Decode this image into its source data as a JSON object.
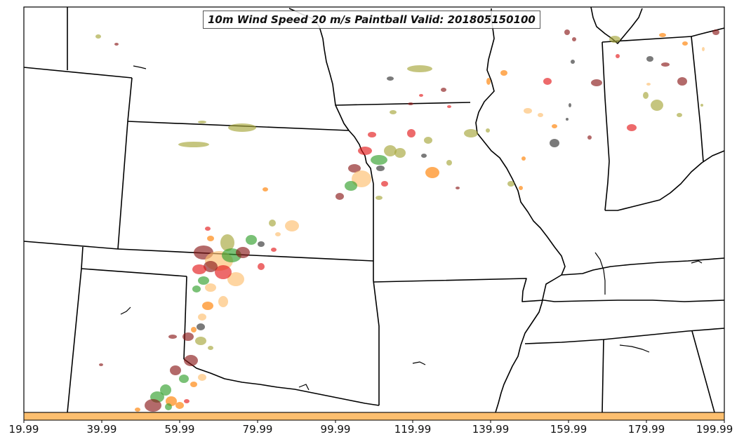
{
  "title": "10m Wind Speed 20 m/s Paintball Valid: 201805150100",
  "colorbar": {
    "color": "#fdbf6f",
    "tick_labels": [
      "19.99",
      "39.99",
      "59.99",
      "79.99",
      "99.99",
      "119.99",
      "139.99",
      "159.99",
      "179.99",
      "199.99"
    ]
  },
  "paintball_colors": [
    "#e31a1c",
    "#33a02c",
    "#ff7f00",
    "#fdbf6f",
    "#b2df8a",
    "#6a3d9a",
    "#8c510a",
    "#a6a63a",
    "#333333",
    "#8b1a1a"
  ]
}
